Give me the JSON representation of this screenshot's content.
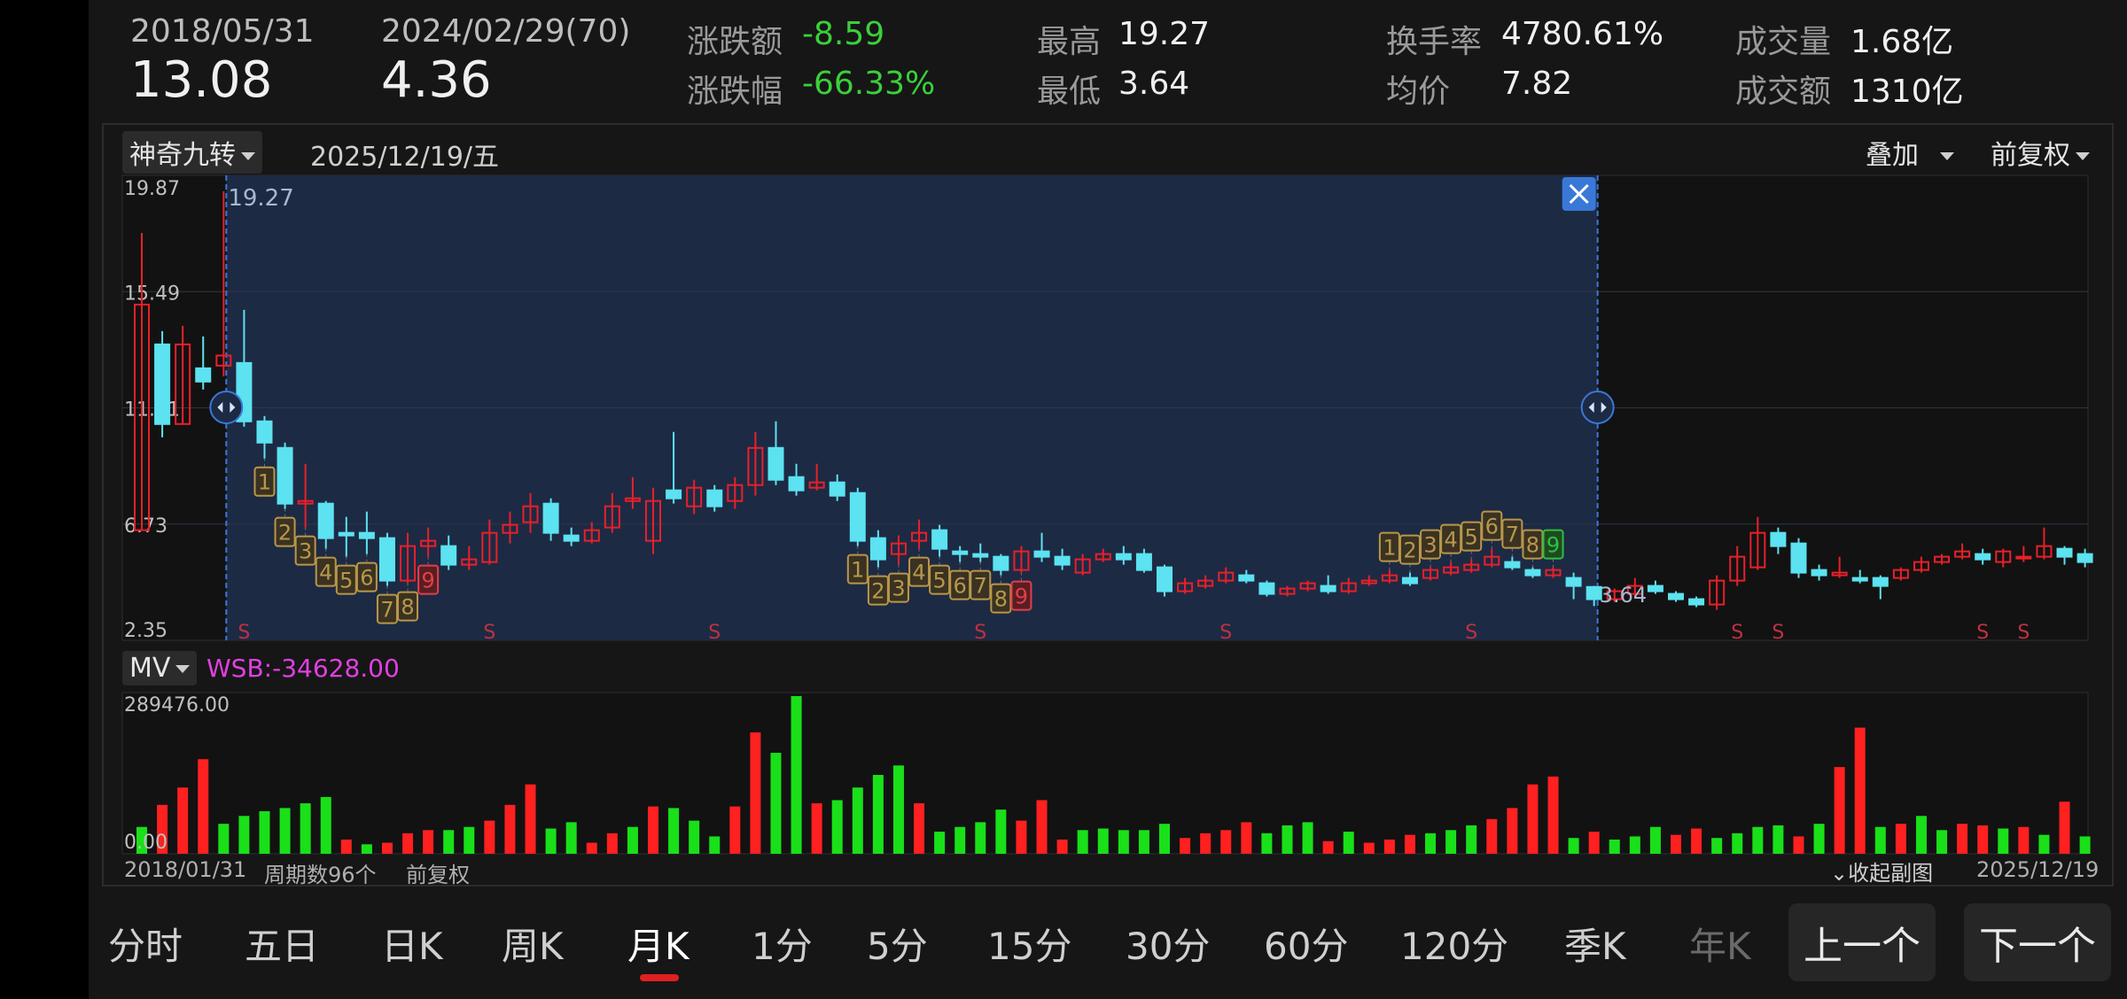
{
  "header": {
    "start_date": "2018/05/31",
    "start_price": "13.08",
    "end_date": "2024/02/29(70)",
    "end_price": "4.36",
    "change_amount_label": "涨跌额",
    "change_amount": "-8.59",
    "change_pct_label": "涨跌幅",
    "change_pct": "-66.33%",
    "high_label": "最高",
    "high": "19.27",
    "low_label": "最低",
    "low": "3.64",
    "turnover_rate_label": "换手率",
    "turnover_rate": "4780.61%",
    "avg_price_label": "均价",
    "avg_price": "7.82",
    "volume_label": "成交量",
    "volume": "1.68亿",
    "amount_label": "成交额",
    "amount": "1310亿"
  },
  "chart_toolbar": {
    "indicator": "神奇九转",
    "date": "2025/12/19/五",
    "overlay": "叠加",
    "adjust": "前复权"
  },
  "main_chart": {
    "y_ticks": [
      "19.87",
      "15.49",
      "11.11",
      "6.73",
      "2.35"
    ],
    "high_marker": "19.27",
    "low_marker": "3.64",
    "s_marker": "S"
  },
  "sub_chart": {
    "indicator": "MV",
    "wsb_text": "WSB:-34628.00",
    "y_max": "289476.00",
    "y_min": "0.00"
  },
  "footer": {
    "start_date": "2018/01/31",
    "period_count": "周期数96个",
    "adjust": "前复权",
    "collapse": "收起副图",
    "end_date": "2025/12/19"
  },
  "timeframes": [
    "分时",
    "五日",
    "日K",
    "周K",
    "月K",
    "1分",
    "5分",
    "15分",
    "30分",
    "60分",
    "120分",
    "季K",
    "年K"
  ],
  "active_timeframe": "月K",
  "nav": {
    "prev": "上一个",
    "next": "下一个"
  },
  "colors": {
    "up": "#e8202a",
    "down": "#5ce2f0",
    "vol_up": "#ff2020",
    "vol_down": "#19e019",
    "selection_bg": "#1d2a44",
    "accent_blue": "#3a78d8",
    "nine_turn": "#b8974a",
    "active_underline": "#e02020",
    "wsb_text": "#e040e0"
  },
  "chart_data": {
    "type": "candlestick",
    "period": "monthly",
    "ylim": [
      2.35,
      19.87
    ],
    "candles": [
      {
        "o": 6.5,
        "c": 15.0,
        "h": 17.7,
        "l": 6.5
      },
      {
        "o": 13.5,
        "c": 10.5,
        "h": 14.0,
        "l": 10.0
      },
      {
        "o": 10.5,
        "c": 13.5,
        "h": 14.2,
        "l": 10.5
      },
      {
        "o": 12.6,
        "c": 12.1,
        "h": 13.8,
        "l": 11.8
      },
      {
        "o": 12.7,
        "c": 13.08,
        "h": 19.27,
        "l": 12.3
      },
      {
        "o": 12.8,
        "c": 10.6,
        "h": 14.8,
        "l": 10.4
      },
      {
        "o": 10.6,
        "c": 9.8,
        "h": 10.8,
        "l": 9.2
      },
      {
        "o": 9.6,
        "c": 7.5,
        "h": 9.8,
        "l": 7.3
      },
      {
        "o": 7.5,
        "c": 7.6,
        "h": 9.0,
        "l": 6.6
      },
      {
        "o": 7.5,
        "c": 6.2,
        "h": 7.6,
        "l": 5.8
      },
      {
        "o": 6.4,
        "c": 6.3,
        "h": 7.0,
        "l": 5.5
      },
      {
        "o": 6.4,
        "c": 6.2,
        "h": 7.2,
        "l": 5.6
      },
      {
        "o": 6.2,
        "c": 4.6,
        "h": 6.4,
        "l": 4.4
      },
      {
        "o": 4.6,
        "c": 5.9,
        "h": 6.4,
        "l": 4.5
      },
      {
        "o": 5.9,
        "c": 6.1,
        "h": 6.6,
        "l": 5.5
      },
      {
        "o": 5.9,
        "c": 5.2,
        "h": 6.3,
        "l": 5.0
      },
      {
        "o": 5.2,
        "c": 5.4,
        "h": 5.9,
        "l": 5.0
      },
      {
        "o": 5.3,
        "c": 6.4,
        "h": 6.9,
        "l": 5.2
      },
      {
        "o": 6.4,
        "c": 6.7,
        "h": 7.2,
        "l": 6.0
      },
      {
        "o": 6.8,
        "c": 7.4,
        "h": 7.9,
        "l": 6.4
      },
      {
        "o": 7.5,
        "c": 6.4,
        "h": 7.7,
        "l": 6.1
      },
      {
        "o": 6.3,
        "c": 6.1,
        "h": 6.6,
        "l": 5.9
      },
      {
        "o": 6.1,
        "c": 6.5,
        "h": 6.8,
        "l": 6.0
      },
      {
        "o": 6.6,
        "c": 7.4,
        "h": 7.9,
        "l": 6.4
      },
      {
        "o": 7.6,
        "c": 7.7,
        "h": 8.5,
        "l": 7.3
      },
      {
        "o": 6.1,
        "c": 7.6,
        "h": 8.1,
        "l": 5.6
      },
      {
        "o": 8.0,
        "c": 7.7,
        "h": 10.2,
        "l": 7.5
      },
      {
        "o": 7.4,
        "c": 8.1,
        "h": 8.4,
        "l": 7.1
      },
      {
        "o": 8.0,
        "c": 7.4,
        "h": 8.2,
        "l": 7.2
      },
      {
        "o": 7.6,
        "c": 8.2,
        "h": 8.5,
        "l": 7.3
      },
      {
        "o": 8.2,
        "c": 9.6,
        "h": 10.2,
        "l": 7.8
      },
      {
        "o": 9.6,
        "c": 8.4,
        "h": 10.6,
        "l": 8.2
      },
      {
        "o": 8.5,
        "c": 8.0,
        "h": 9.0,
        "l": 7.8
      },
      {
        "o": 8.1,
        "c": 8.3,
        "h": 9.0,
        "l": 8.0
      },
      {
        "o": 8.3,
        "c": 7.8,
        "h": 8.6,
        "l": 7.6
      },
      {
        "o": 7.9,
        "c": 6.1,
        "h": 8.1,
        "l": 5.9
      },
      {
        "o": 6.2,
        "c": 5.4,
        "h": 6.5,
        "l": 5.1
      },
      {
        "o": 5.6,
        "c": 6.0,
        "h": 6.3,
        "l": 5.2
      },
      {
        "o": 6.1,
        "c": 6.4,
        "h": 6.9,
        "l": 5.8
      },
      {
        "o": 6.5,
        "c": 5.8,
        "h": 6.7,
        "l": 5.5
      },
      {
        "o": 5.7,
        "c": 5.6,
        "h": 5.9,
        "l": 5.3
      },
      {
        "o": 5.6,
        "c": 5.5,
        "h": 6.0,
        "l": 5.3
      },
      {
        "o": 5.5,
        "c": 5.0,
        "h": 5.6,
        "l": 4.8
      },
      {
        "o": 5.0,
        "c": 5.7,
        "h": 5.9,
        "l": 4.9
      },
      {
        "o": 5.7,
        "c": 5.5,
        "h": 6.4,
        "l": 5.3
      },
      {
        "o": 5.5,
        "c": 5.2,
        "h": 5.8,
        "l": 5.0
      },
      {
        "o": 4.9,
        "c": 5.4,
        "h": 5.6,
        "l": 4.8
      },
      {
        "o": 5.4,
        "c": 5.6,
        "h": 5.8,
        "l": 5.3
      },
      {
        "o": 5.6,
        "c": 5.4,
        "h": 5.9,
        "l": 5.2
      },
      {
        "o": 5.6,
        "c": 5.0,
        "h": 5.8,
        "l": 4.9
      },
      {
        "o": 5.1,
        "c": 4.2,
        "h": 5.2,
        "l": 4.0
      },
      {
        "o": 4.2,
        "c": 4.5,
        "h": 4.7,
        "l": 4.1
      },
      {
        "o": 4.4,
        "c": 4.6,
        "h": 4.8,
        "l": 4.3
      },
      {
        "o": 4.6,
        "c": 4.9,
        "h": 5.1,
        "l": 4.5
      },
      {
        "o": 4.8,
        "c": 4.6,
        "h": 5.0,
        "l": 4.5
      },
      {
        "o": 4.5,
        "c": 4.1,
        "h": 4.6,
        "l": 4.0
      },
      {
        "o": 4.1,
        "c": 4.3,
        "h": 4.4,
        "l": 4.0
      },
      {
        "o": 4.3,
        "c": 4.5,
        "h": 4.6,
        "l": 4.2
      },
      {
        "o": 4.4,
        "c": 4.2,
        "h": 4.8,
        "l": 4.1
      },
      {
        "o": 4.2,
        "c": 4.5,
        "h": 4.7,
        "l": 4.1
      },
      {
        "o": 4.5,
        "c": 4.6,
        "h": 4.8,
        "l": 4.4
      },
      {
        "o": 4.6,
        "c": 4.8,
        "h": 5.0,
        "l": 4.5
      },
      {
        "o": 4.7,
        "c": 4.5,
        "h": 4.9,
        "l": 4.4
      },
      {
        "o": 4.7,
        "c": 5.0,
        "h": 5.1,
        "l": 4.6
      },
      {
        "o": 4.9,
        "c": 5.1,
        "h": 5.3,
        "l": 4.8
      },
      {
        "o": 5.0,
        "c": 5.2,
        "h": 5.4,
        "l": 4.9
      },
      {
        "o": 5.2,
        "c": 5.5,
        "h": 5.8,
        "l": 5.1
      },
      {
        "o": 5.3,
        "c": 5.1,
        "h": 5.5,
        "l": 5.0
      },
      {
        "o": 5.0,
        "c": 4.8,
        "h": 5.1,
        "l": 4.7
      },
      {
        "o": 4.8,
        "c": 5.0,
        "h": 5.1,
        "l": 4.7
      },
      {
        "o": 4.7,
        "c": 4.4,
        "h": 4.9,
        "l": 3.9
      },
      {
        "o": 4.36,
        "c": 3.9,
        "h": 4.4,
        "l": 3.64
      },
      {
        "o": 3.9,
        "c": 4.2,
        "h": 4.3,
        "l": 3.8
      },
      {
        "o": 4.1,
        "c": 4.4,
        "h": 4.7,
        "l": 4.0
      },
      {
        "o": 4.4,
        "c": 4.2,
        "h": 4.6,
        "l": 4.1
      },
      {
        "o": 4.1,
        "c": 3.9,
        "h": 4.2,
        "l": 3.8
      },
      {
        "o": 3.9,
        "c": 3.7,
        "h": 4.0,
        "l": 3.6
      },
      {
        "o": 3.7,
        "c": 4.6,
        "h": 4.8,
        "l": 3.5
      },
      {
        "o": 4.6,
        "c": 5.5,
        "h": 5.9,
        "l": 4.4
      },
      {
        "o": 5.1,
        "c": 6.4,
        "h": 7.0,
        "l": 5.0
      },
      {
        "o": 6.4,
        "c": 5.9,
        "h": 6.6,
        "l": 5.6
      },
      {
        "o": 6.0,
        "c": 4.9,
        "h": 6.2,
        "l": 4.7
      },
      {
        "o": 5.0,
        "c": 4.8,
        "h": 5.2,
        "l": 4.6
      },
      {
        "o": 4.8,
        "c": 4.9,
        "h": 5.5,
        "l": 4.7
      },
      {
        "o": 4.7,
        "c": 4.6,
        "h": 5.0,
        "l": 4.5
      },
      {
        "o": 4.7,
        "c": 4.4,
        "h": 4.8,
        "l": 3.9
      },
      {
        "o": 4.7,
        "c": 5.0,
        "h": 5.1,
        "l": 4.6
      },
      {
        "o": 5.0,
        "c": 5.3,
        "h": 5.5,
        "l": 4.9
      },
      {
        "o": 5.3,
        "c": 5.5,
        "h": 5.6,
        "l": 5.2
      },
      {
        "o": 5.5,
        "c": 5.7,
        "h": 6.0,
        "l": 5.4
      },
      {
        "o": 5.6,
        "c": 5.4,
        "h": 5.8,
        "l": 5.2
      },
      {
        "o": 5.3,
        "c": 5.7,
        "h": 5.8,
        "l": 5.1
      },
      {
        "o": 5.5,
        "c": 5.5,
        "h": 5.9,
        "l": 5.3
      },
      {
        "o": 5.5,
        "c": 5.9,
        "h": 6.6,
        "l": 5.4
      },
      {
        "o": 5.8,
        "c": 5.5,
        "h": 5.9,
        "l": 5.2
      },
      {
        "o": 5.6,
        "c": 5.3,
        "h": 5.8,
        "l": 5.1
      }
    ],
    "volume_max": 289476,
    "volumes": [
      {
        "v": 0.17,
        "up": false
      },
      {
        "v": 0.31,
        "up": true
      },
      {
        "v": 0.42,
        "up": true
      },
      {
        "v": 0.6,
        "up": true
      },
      {
        "v": 0.19,
        "up": false
      },
      {
        "v": 0.24,
        "up": false
      },
      {
        "v": 0.27,
        "up": false
      },
      {
        "v": 0.29,
        "up": false
      },
      {
        "v": 0.32,
        "up": false
      },
      {
        "v": 0.36,
        "up": false
      },
      {
        "v": 0.09,
        "up": true
      },
      {
        "v": 0.06,
        "up": false
      },
      {
        "v": 0.07,
        "up": true
      },
      {
        "v": 0.13,
        "up": true
      },
      {
        "v": 0.15,
        "up": true
      },
      {
        "v": 0.15,
        "up": false
      },
      {
        "v": 0.17,
        "up": false
      },
      {
        "v": 0.21,
        "up": true
      },
      {
        "v": 0.31,
        "up": true
      },
      {
        "v": 0.44,
        "up": true
      },
      {
        "v": 0.16,
        "up": false
      },
      {
        "v": 0.2,
        "up": false
      },
      {
        "v": 0.07,
        "up": true
      },
      {
        "v": 0.13,
        "up": true
      },
      {
        "v": 0.17,
        "up": false
      },
      {
        "v": 0.3,
        "up": true
      },
      {
        "v": 0.29,
        "up": false
      },
      {
        "v": 0.21,
        "up": false
      },
      {
        "v": 0.11,
        "up": false
      },
      {
        "v": 0.3,
        "up": true
      },
      {
        "v": 0.77,
        "up": true
      },
      {
        "v": 0.64,
        "up": false
      },
      {
        "v": 1.0,
        "up": false
      },
      {
        "v": 0.32,
        "up": true
      },
      {
        "v": 0.34,
        "up": false
      },
      {
        "v": 0.42,
        "up": false
      },
      {
        "v": 0.5,
        "up": false
      },
      {
        "v": 0.56,
        "up": false
      },
      {
        "v": 0.32,
        "up": true
      },
      {
        "v": 0.14,
        "up": false
      },
      {
        "v": 0.17,
        "up": false
      },
      {
        "v": 0.2,
        "up": false
      },
      {
        "v": 0.28,
        "up": false
      },
      {
        "v": 0.21,
        "up": true
      },
      {
        "v": 0.34,
        "up": true
      },
      {
        "v": 0.09,
        "up": true
      },
      {
        "v": 0.15,
        "up": false
      },
      {
        "v": 0.16,
        "up": false
      },
      {
        "v": 0.15,
        "up": false
      },
      {
        "v": 0.15,
        "up": false
      },
      {
        "v": 0.19,
        "up": false
      },
      {
        "v": 0.1,
        "up": true
      },
      {
        "v": 0.13,
        "up": true
      },
      {
        "v": 0.15,
        "up": true
      },
      {
        "v": 0.2,
        "up": true
      },
      {
        "v": 0.13,
        "up": false
      },
      {
        "v": 0.18,
        "up": false
      },
      {
        "v": 0.2,
        "up": false
      },
      {
        "v": 0.08,
        "up": true
      },
      {
        "v": 0.14,
        "up": false
      },
      {
        "v": 0.07,
        "up": true
      },
      {
        "v": 0.09,
        "up": true
      },
      {
        "v": 0.12,
        "up": true
      },
      {
        "v": 0.13,
        "up": false
      },
      {
        "v": 0.15,
        "up": false
      },
      {
        "v": 0.18,
        "up": false
      },
      {
        "v": 0.22,
        "up": true
      },
      {
        "v": 0.29,
        "up": true
      },
      {
        "v": 0.44,
        "up": true
      },
      {
        "v": 0.49,
        "up": true
      },
      {
        "v": 0.1,
        "up": false
      },
      {
        "v": 0.14,
        "up": true
      },
      {
        "v": 0.09,
        "up": false
      },
      {
        "v": 0.11,
        "up": false
      },
      {
        "v": 0.17,
        "up": false
      },
      {
        "v": 0.12,
        "up": true
      },
      {
        "v": 0.16,
        "up": true
      },
      {
        "v": 0.1,
        "up": false
      },
      {
        "v": 0.13,
        "up": false
      },
      {
        "v": 0.17,
        "up": false
      },
      {
        "v": 0.18,
        "up": false
      },
      {
        "v": 0.11,
        "up": true
      },
      {
        "v": 0.19,
        "up": false
      },
      {
        "v": 0.55,
        "up": true
      },
      {
        "v": 0.8,
        "up": true
      },
      {
        "v": 0.17,
        "up": false
      },
      {
        "v": 0.19,
        "up": true
      },
      {
        "v": 0.24,
        "up": false
      },
      {
        "v": 0.15,
        "up": false
      },
      {
        "v": 0.19,
        "up": true
      },
      {
        "v": 0.18,
        "up": true
      },
      {
        "v": 0.16,
        "up": false
      },
      {
        "v": 0.17,
        "up": true
      },
      {
        "v": 0.12,
        "up": false
      },
      {
        "v": 0.33,
        "up": true
      },
      {
        "v": 0.11,
        "up": false
      }
    ],
    "nine_turn": [
      {
        "i": 6,
        "n": 1,
        "pos": "below",
        "hl": false
      },
      {
        "i": 7,
        "n": 2,
        "pos": "below",
        "hl": false
      },
      {
        "i": 8,
        "n": 3,
        "pos": "below",
        "hl": false
      },
      {
        "i": 9,
        "n": 4,
        "pos": "below",
        "hl": false
      },
      {
        "i": 10,
        "n": 5,
        "pos": "below",
        "hl": false
      },
      {
        "i": 11,
        "n": 6,
        "pos": "below",
        "hl": false
      },
      {
        "i": 12,
        "n": 7,
        "pos": "below",
        "hl": false
      },
      {
        "i": 13,
        "n": 8,
        "pos": "below",
        "hl": false
      },
      {
        "i": 14,
        "n": 9,
        "pos": "below",
        "hl": true
      },
      {
        "i": 35,
        "n": 1,
        "pos": "below",
        "hl": false
      },
      {
        "i": 36,
        "n": 2,
        "pos": "below",
        "hl": false
      },
      {
        "i": 37,
        "n": 3,
        "pos": "below",
        "hl": false
      },
      {
        "i": 38,
        "n": 4,
        "pos": "below",
        "hl": false
      },
      {
        "i": 39,
        "n": 5,
        "pos": "below",
        "hl": false
      },
      {
        "i": 40,
        "n": 6,
        "pos": "below",
        "hl": false
      },
      {
        "i": 41,
        "n": 7,
        "pos": "below",
        "hl": false
      },
      {
        "i": 42,
        "n": 8,
        "pos": "below",
        "hl": false
      },
      {
        "i": 43,
        "n": 9,
        "pos": "below",
        "hl": true
      },
      {
        "i": 61,
        "n": 1,
        "pos": "above",
        "hl": false
      },
      {
        "i": 62,
        "n": 2,
        "pos": "above",
        "hl": false
      },
      {
        "i": 63,
        "n": 3,
        "pos": "above",
        "hl": false
      },
      {
        "i": 64,
        "n": 4,
        "pos": "above",
        "hl": false
      },
      {
        "i": 65,
        "n": 5,
        "pos": "above",
        "hl": false
      },
      {
        "i": 66,
        "n": 6,
        "pos": "above",
        "hl": false
      },
      {
        "i": 67,
        "n": 7,
        "pos": "above",
        "hl": false
      },
      {
        "i": 68,
        "n": 8,
        "pos": "above",
        "hl": false
      },
      {
        "i": 69,
        "n": 9,
        "pos": "above",
        "hl": true
      }
    ],
    "s_markers": [
      5,
      17,
      28,
      41,
      53,
      65,
      78,
      80,
      90,
      92
    ],
    "selection": {
      "start": 4,
      "end": 71
    }
  }
}
